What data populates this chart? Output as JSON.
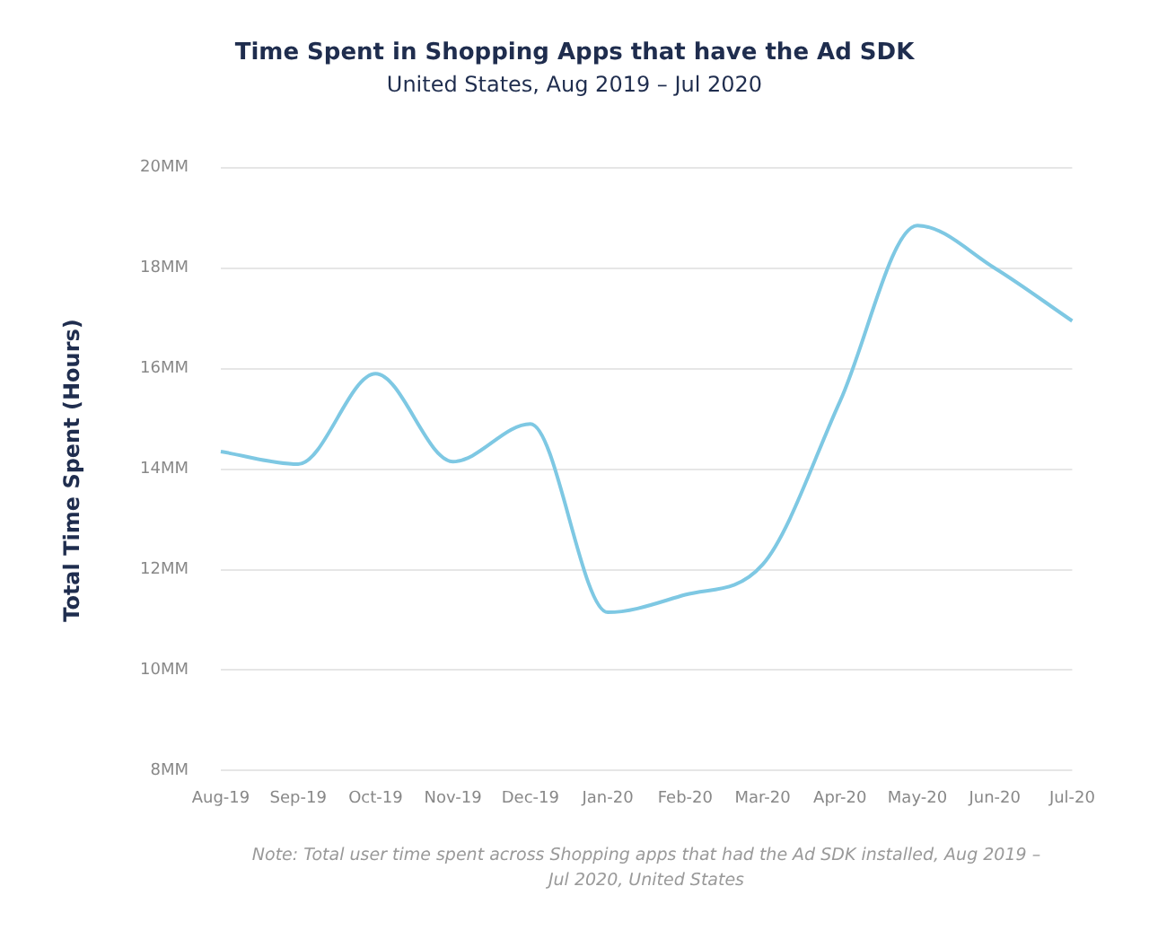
{
  "chart_data": {
    "type": "line",
    "title": "Time Spent in Shopping Apps that have the Ad SDK",
    "subtitle": "United States, Aug 2019 – Jul 2020",
    "ylabel": "Total Time Spent (Hours)",
    "categories": [
      "Aug-19",
      "Sep-19",
      "Oct-19",
      "Nov-19",
      "Dec-19",
      "Jan-20",
      "Feb-20",
      "Mar-20",
      "Apr-20",
      "May-20",
      "Jun-20",
      "Jul-20"
    ],
    "series": [
      {
        "color": "#7ec8e3",
        "values": [
          14.35,
          14.1,
          15.9,
          14.15,
          14.9,
          11.15,
          11.5,
          12.1,
          15.35,
          18.85,
          18.0,
          16.95
        ]
      }
    ],
    "ylim": [
      8,
      20
    ],
    "yticks": [
      {
        "value": 8,
        "label": "8MM"
      },
      {
        "value": 10,
        "label": "10MM"
      },
      {
        "value": 12,
        "label": "12MM"
      },
      {
        "value": 14,
        "label": "14MM"
      },
      {
        "value": 16,
        "label": "16MM"
      },
      {
        "value": 18,
        "label": "18MM"
      },
      {
        "value": 20,
        "label": "20MM"
      }
    ],
    "grid": "y",
    "legend": false,
    "marker": "none",
    "line_style": "solid",
    "annotations": [
      "Note: Total user time spent across Shopping apps that had the Ad SDK installed, Aug 2019 – Jul 2020, United States"
    ]
  }
}
